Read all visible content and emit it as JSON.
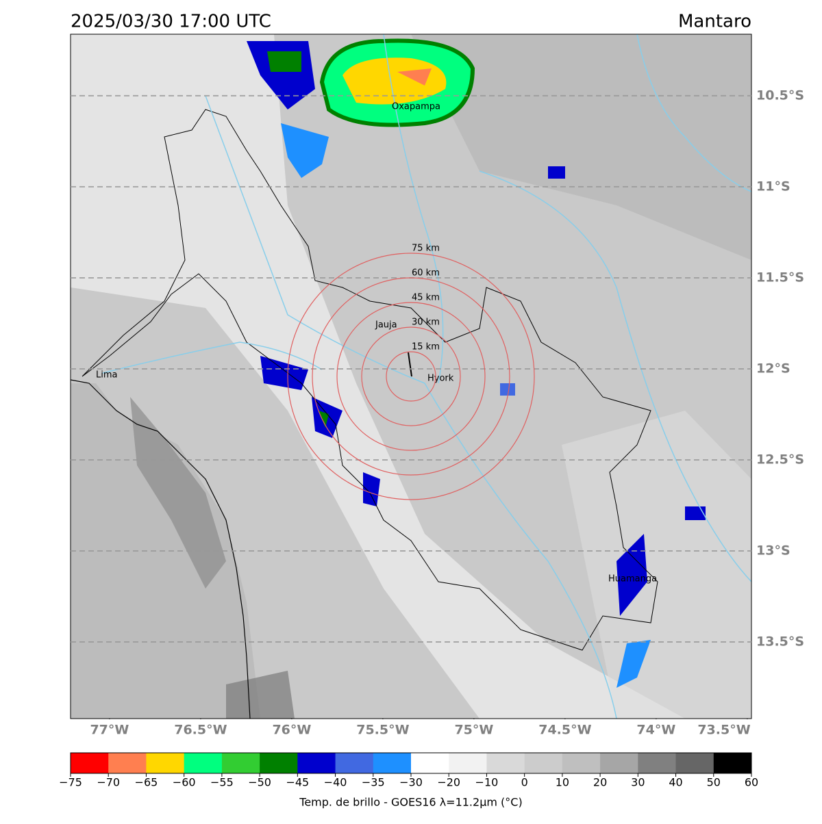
{
  "map": {
    "title": "2025/03/30 17:00 UTC",
    "region": "Mantaro",
    "xlim": [
      -77.214,
      -73.477
    ],
    "ylim": [
      -10.162,
      -13.921
    ],
    "xticks": [
      {
        "value": -77,
        "label": "77°W"
      },
      {
        "value": -76.5,
        "label": "76.5°W"
      },
      {
        "value": -76,
        "label": "76°W"
      },
      {
        "value": -75.5,
        "label": "75.5°W"
      },
      {
        "value": -75,
        "label": "75°W"
      },
      {
        "value": -74.5,
        "label": "74.5°W"
      },
      {
        "value": -74,
        "label": "74°W"
      },
      {
        "value": -73.5,
        "label": "73.5°W"
      }
    ],
    "yticks": [
      {
        "value": -10.5,
        "label": "10.5°S"
      },
      {
        "value": -11,
        "label": "11°S"
      },
      {
        "value": -11.5,
        "label": "11.5°S"
      },
      {
        "value": -12,
        "label": "12°S"
      },
      {
        "value": -12.5,
        "label": "12.5°S"
      },
      {
        "value": -13,
        "label": "13°S"
      },
      {
        "value": -13.5,
        "label": "13.5°S"
      }
    ],
    "rings": [
      {
        "value": 15,
        "label": "15 km"
      },
      {
        "value": 30,
        "label": "30 km"
      },
      {
        "value": 45,
        "label": "45 km"
      },
      {
        "value": 60,
        "label": "60 km"
      },
      {
        "value": 75,
        "label": "75 km"
      }
    ],
    "cities": [
      "Oxapampa",
      "Jauja",
      "Hyork",
      "Lima",
      "Huamanga"
    ],
    "colorbar": {
      "label": "Temp. de brillo - GOES16 λ=11.2μm (°C)",
      "ticks": [
        {
          "value": -75,
          "label": "−75"
        },
        {
          "value": -70,
          "label": "−70"
        },
        {
          "value": -65,
          "label": "−65"
        },
        {
          "value": -60,
          "label": "−60"
        },
        {
          "value": -55,
          "label": "−55"
        },
        {
          "value": -50,
          "label": "−50"
        },
        {
          "value": -45,
          "label": "−45"
        },
        {
          "value": -40,
          "label": "−40"
        },
        {
          "value": -35,
          "label": "−35"
        },
        {
          "value": -30,
          "label": "−30"
        },
        {
          "value": -20,
          "label": "−20"
        },
        {
          "value": -10,
          "label": "−10"
        },
        0,
        10,
        20,
        30,
        40,
        50,
        60
      ],
      "colors": [
        "#ff0000",
        "#ff7f50",
        "#ffd700",
        "#00ff7f",
        "#32cd32",
        "#008000",
        "#0000cd",
        "#4169e1",
        "#1e90ff",
        "#ffffff",
        "#f2f2f2",
        "#d9d9d9",
        "#cccccc",
        "#bfbfbf",
        "#a6a6a6",
        "#808080",
        "#666666",
        "#000000"
      ]
    }
  }
}
